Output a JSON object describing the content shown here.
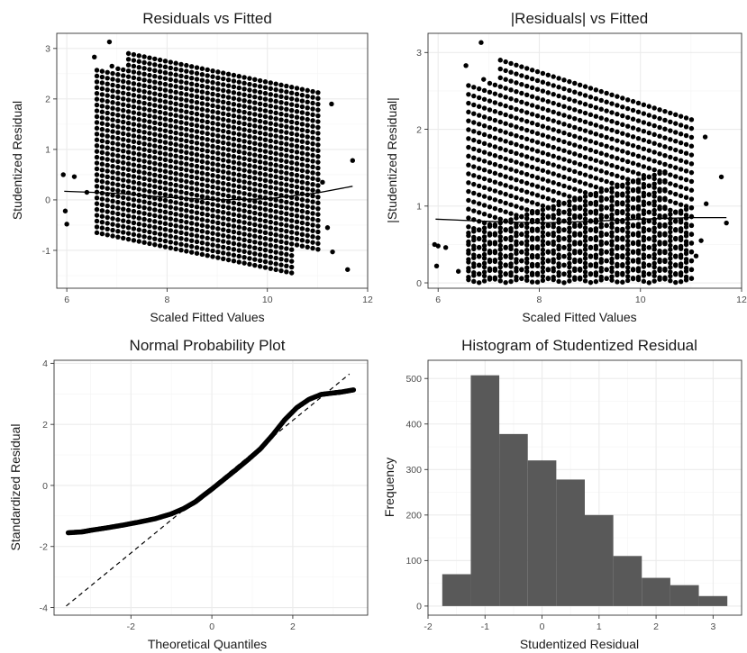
{
  "chart_data": [
    {
      "id": "resid-fitted",
      "type": "scatter",
      "title": "Residuals vs Fitted",
      "xlabel": "Scaled Fitted Values",
      "ylabel": "Studentized Residual",
      "xlim": [
        5.8,
        12.0
      ],
      "ylim": [
        -1.75,
        3.3
      ],
      "xticks": [
        6,
        8,
        10,
        12
      ],
      "yticks": [
        -1,
        0,
        1,
        2,
        3
      ],
      "grid": true,
      "bands": {
        "y0": -0.65,
        "y_step": 0.115,
        "count": 33,
        "slope": -0.205,
        "x_min": 6.6,
        "x_max": 11.1
      },
      "outliers": [
        [
          5.93,
          0.5
        ],
        [
          5.97,
          -0.22
        ],
        [
          6.0,
          -0.48
        ],
        [
          6.15,
          0.46
        ],
        [
          6.4,
          0.15
        ],
        [
          6.55,
          2.83
        ],
        [
          6.85,
          3.13
        ],
        [
          6.9,
          2.65
        ],
        [
          11.28,
          1.9
        ],
        [
          11.2,
          -0.55
        ],
        [
          11.3,
          -1.03
        ],
        [
          11.6,
          -1.38
        ],
        [
          11.7,
          0.78
        ],
        [
          11.1,
          0.35
        ]
      ],
      "series": [
        {
          "type": "smooth",
          "x": [
            5.95,
            7.0,
            8.0,
            9.0,
            10.0,
            11.0,
            11.7
          ],
          "y": [
            0.17,
            0.13,
            0.05,
            0.0,
            0.02,
            0.14,
            0.27
          ]
        }
      ]
    },
    {
      "id": "abs-resid-fitted",
      "type": "scatter",
      "title": "|Residuals| vs Fitted",
      "xlabel": "Scaled Fitted Values",
      "ylabel": "|Studentized Residual|",
      "xlim": [
        5.8,
        12.0
      ],
      "ylim": [
        -0.07,
        3.25
      ],
      "xticks": [
        6,
        8,
        10,
        12
      ],
      "yticks": [
        0,
        1,
        2,
        3
      ],
      "grid": true,
      "bands": {
        "y0": -0.65,
        "y_step": 0.115,
        "count": 33,
        "slope": -0.205,
        "x_min": 6.6,
        "x_max": 11.1
      },
      "outliers": [
        [
          5.93,
          0.5
        ],
        [
          5.97,
          0.22
        ],
        [
          6.0,
          0.48
        ],
        [
          6.15,
          0.46
        ],
        [
          6.4,
          0.15
        ],
        [
          6.55,
          2.83
        ],
        [
          6.85,
          3.13
        ],
        [
          6.9,
          2.65
        ],
        [
          11.28,
          1.9
        ],
        [
          11.2,
          0.55
        ],
        [
          11.3,
          1.03
        ],
        [
          11.6,
          1.38
        ],
        [
          11.7,
          0.78
        ],
        [
          11.1,
          0.35
        ]
      ],
      "series": [
        {
          "type": "smooth",
          "x": [
            5.95,
            7.0,
            8.0,
            9.0,
            10.0,
            11.0,
            11.7
          ],
          "y": [
            0.83,
            0.8,
            0.78,
            0.8,
            0.83,
            0.85,
            0.85
          ]
        }
      ]
    },
    {
      "id": "normal-prob",
      "type": "scatter",
      "title": "Normal Probability Plot",
      "xlabel": "Theoretical Quantiles",
      "ylabel": "Standardized Residual",
      "xlim": [
        -3.9,
        3.85
      ],
      "ylim": [
        -4.25,
        4.1
      ],
      "xticks": [
        -2,
        0,
        2
      ],
      "yticks": [
        -4,
        -2,
        0,
        2,
        4
      ],
      "grid": true,
      "curve": {
        "x": [
          -3.55,
          -3.2,
          -3.0,
          -2.6,
          -2.2,
          -1.8,
          -1.4,
          -1.0,
          -0.7,
          -0.4,
          -0.2,
          0.0,
          0.3,
          0.6,
          0.9,
          1.2,
          1.5,
          1.8,
          2.1,
          2.4,
          2.7,
          3.0,
          3.2,
          3.5
        ],
        "y": [
          -1.55,
          -1.52,
          -1.47,
          -1.39,
          -1.3,
          -1.2,
          -1.09,
          -0.93,
          -0.76,
          -0.53,
          -0.32,
          -0.12,
          0.2,
          0.52,
          0.85,
          1.2,
          1.65,
          2.15,
          2.55,
          2.82,
          2.98,
          3.03,
          3.06,
          3.13
        ]
      },
      "reference_line": {
        "x": [
          -3.6,
          3.4
        ],
        "y": [
          -3.95,
          3.65
        ]
      }
    },
    {
      "id": "histogram",
      "type": "bar",
      "title": "Histogram of Studentized Residual",
      "xlabel": "Studentized Residual",
      "ylabel": "Frequency",
      "xlim": [
        -2.0,
        3.5
      ],
      "ylim": [
        -20,
        540
      ],
      "xticks": [
        -2,
        -1,
        0,
        1,
        2,
        3
      ],
      "yticks": [
        0,
        100,
        200,
        300,
        400,
        500
      ],
      "grid": true,
      "bin_edges": [
        -1.75,
        -1.25,
        -0.75,
        -0.25,
        0.25,
        0.75,
        1.25,
        1.75,
        2.25,
        2.75,
        3.25
      ],
      "values": [
        70,
        507,
        378,
        320,
        278,
        200,
        110,
        62,
        46,
        22
      ],
      "bar_color": "#595959"
    }
  ]
}
